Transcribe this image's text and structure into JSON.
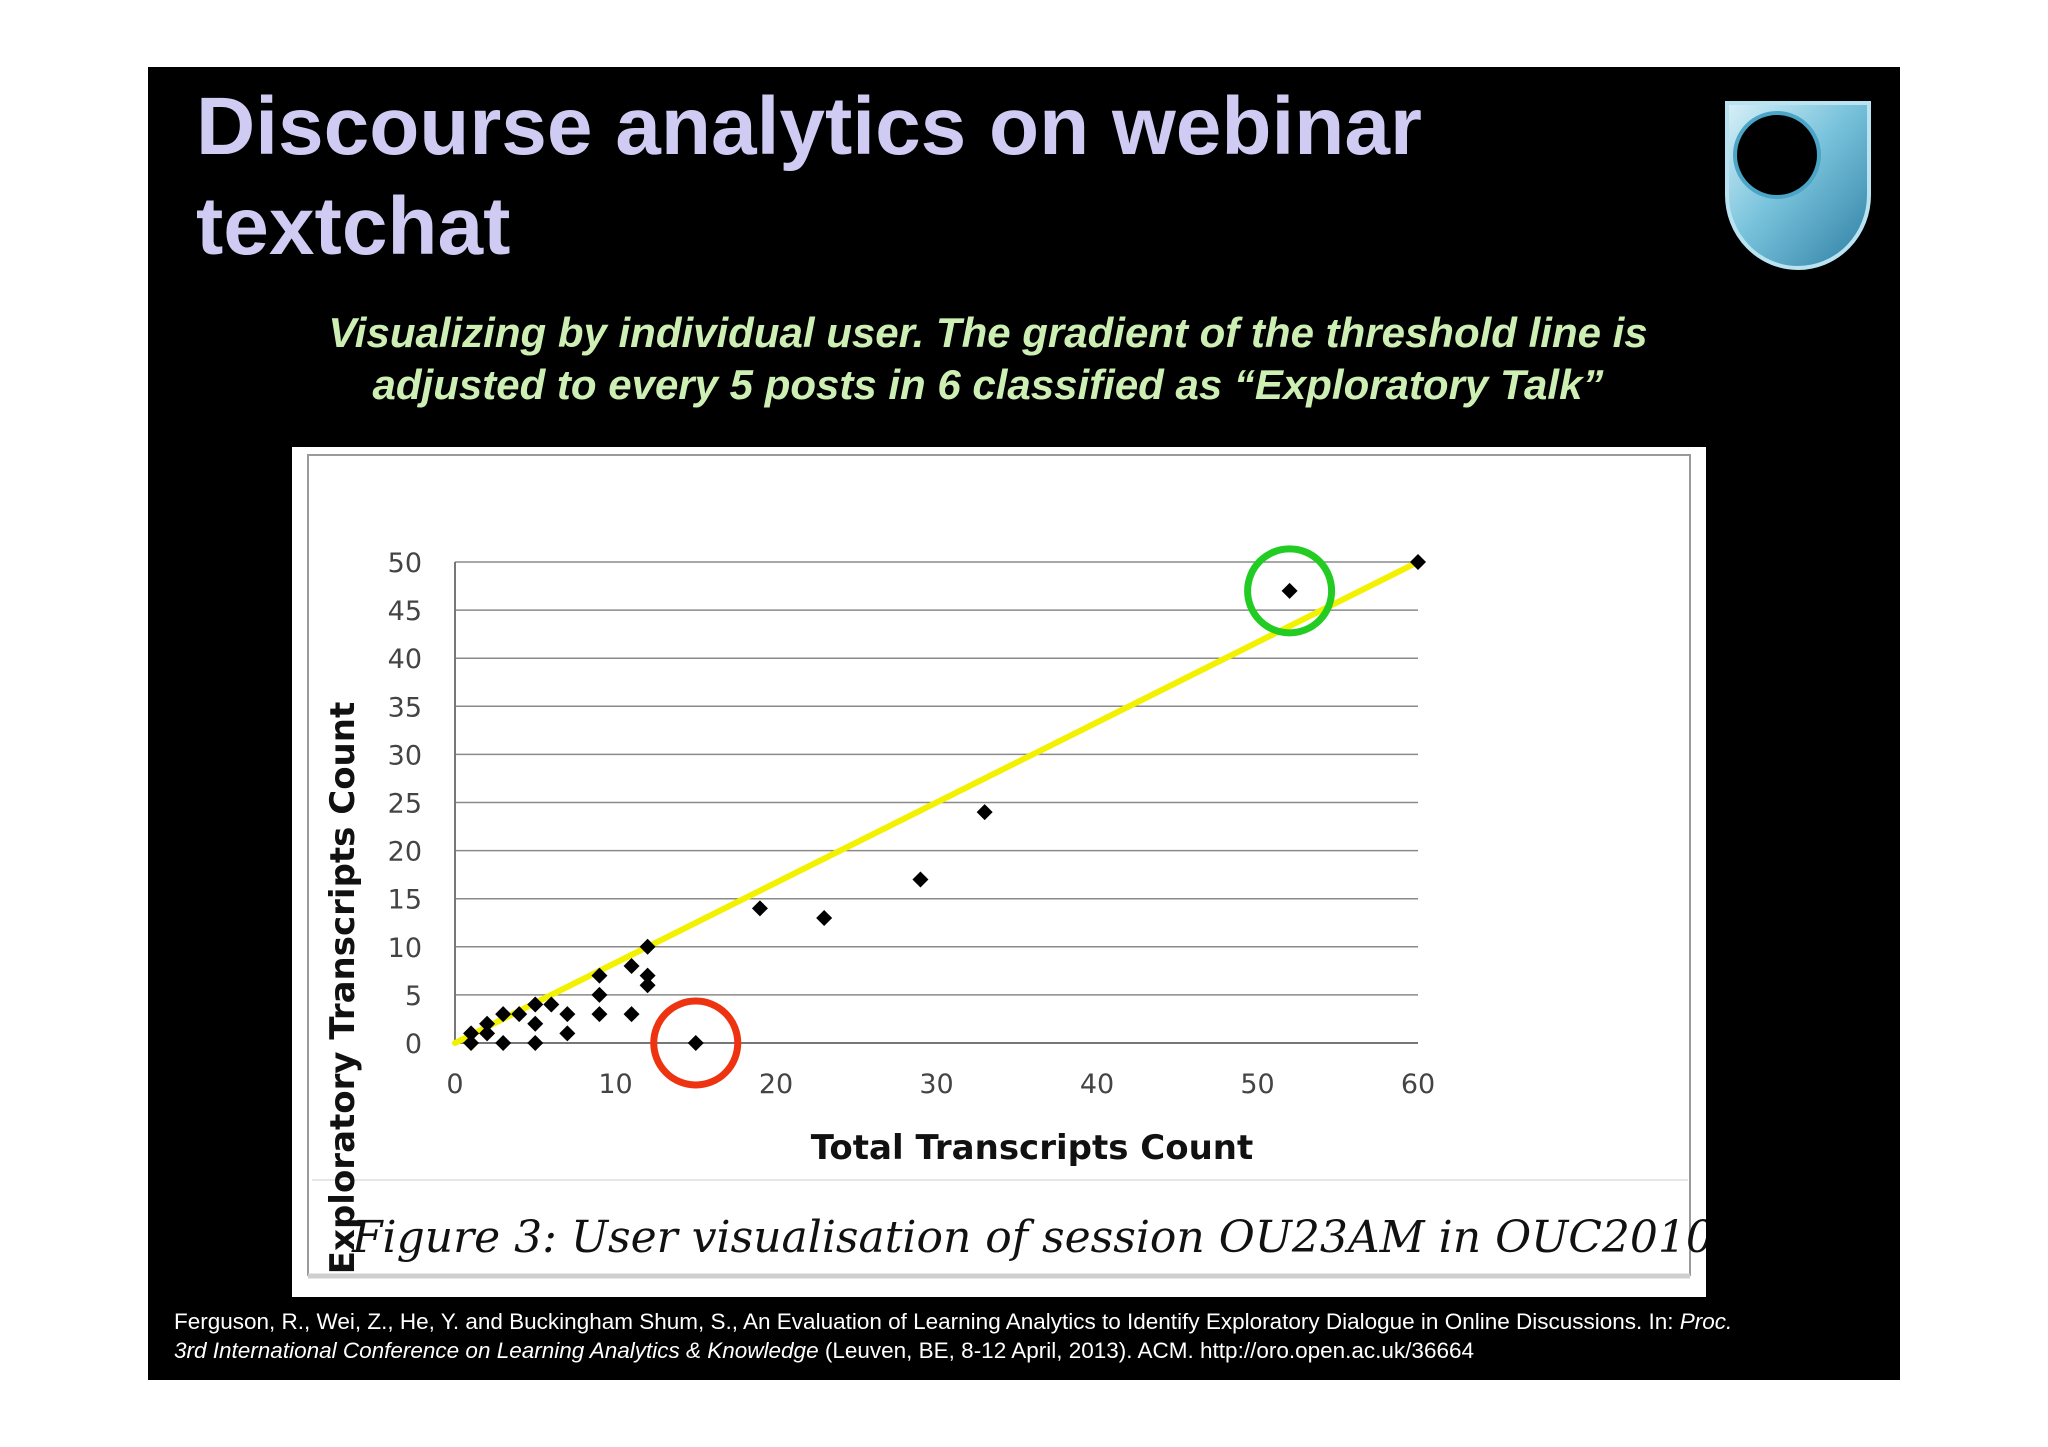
{
  "slide": {
    "title_line1": "Discourse analytics on webinar",
    "title_line2": "textchat",
    "subtitle_line1": "Visualizing by individual user. The gradient of the threshold line is",
    "subtitle_line2": "adjusted to every 5 posts in 6 classified as “Exploratory Talk”",
    "figure_caption": "Figure 3: User visualisation of session OU23AM in OUC2010",
    "citation": {
      "authors": "Ferguson, R., Wei, Z., He, Y. and Buckingham Shum, S., An Evaluation of Learning Analytics to Identify Exploratory Dialogue in Online Discussions. In: ",
      "proc": "Proc.",
      "conference": "3rd International Conference on Learning Analytics & Knowledge",
      "details": " (Leuven, BE, 8-12 April, 2013). ACM. http://oro.open.ac.uk/36664"
    },
    "colors": {
      "background": "#000000",
      "title": "#cfcbf2",
      "subtitle": "#cdefb4",
      "threshold_line": "#f2f200",
      "highlight_good": "#22cc22",
      "highlight_bad": "#ee3311",
      "logo": "#79c3dc"
    }
  },
  "chart_data": {
    "type": "scatter",
    "xlabel": "Total Transcripts Count",
    "ylabel": "Exploratory Transcripts Count",
    "xlim": [
      0,
      60
    ],
    "ylim": [
      0,
      50
    ],
    "xticks": [
      0,
      10,
      20,
      30,
      40,
      50,
      60
    ],
    "yticks": [
      0,
      5,
      10,
      15,
      20,
      25,
      30,
      35,
      40,
      45,
      50
    ],
    "grid": "horizontal",
    "points": [
      {
        "x": 1,
        "y": 0
      },
      {
        "x": 1,
        "y": 1
      },
      {
        "x": 2,
        "y": 1
      },
      {
        "x": 2,
        "y": 2
      },
      {
        "x": 3,
        "y": 0
      },
      {
        "x": 3,
        "y": 3
      },
      {
        "x": 4,
        "y": 3
      },
      {
        "x": 5,
        "y": 0
      },
      {
        "x": 5,
        "y": 2
      },
      {
        "x": 5,
        "y": 4
      },
      {
        "x": 6,
        "y": 4
      },
      {
        "x": 7,
        "y": 1
      },
      {
        "x": 7,
        "y": 3
      },
      {
        "x": 9,
        "y": 3
      },
      {
        "x": 9,
        "y": 5
      },
      {
        "x": 9,
        "y": 7
      },
      {
        "x": 11,
        "y": 3
      },
      {
        "x": 11,
        "y": 8
      },
      {
        "x": 12,
        "y": 6
      },
      {
        "x": 12,
        "y": 7
      },
      {
        "x": 12,
        "y": 10
      },
      {
        "x": 15,
        "y": 0
      },
      {
        "x": 19,
        "y": 14
      },
      {
        "x": 23,
        "y": 13
      },
      {
        "x": 29,
        "y": 17
      },
      {
        "x": 33,
        "y": 24
      },
      {
        "x": 52,
        "y": 47
      },
      {
        "x": 60,
        "y": 50
      }
    ],
    "threshold_line": {
      "x": [
        0,
        60
      ],
      "y": [
        0,
        50
      ]
    },
    "highlights": [
      {
        "x": 52,
        "y": 47,
        "color": "green"
      },
      {
        "x": 15,
        "y": 0,
        "color": "red"
      }
    ]
  }
}
